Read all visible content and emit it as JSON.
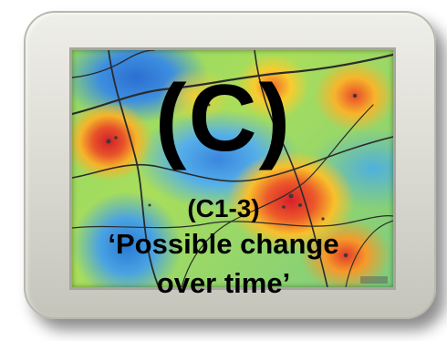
{
  "screen": {
    "letter": "(C)",
    "code": "(C1-3)",
    "caption_line1": "‘Possible change",
    "caption_line2": "over time’"
  },
  "colors": {
    "hot": "#d0202a",
    "warm": "#f5b42a",
    "mid": "#8fd66a",
    "cool": "#2c6fd0",
    "frame": "#d9d8d0",
    "text": "#000000"
  },
  "icons": [
    "heatmap-image",
    "map-roads",
    "device-frame"
  ]
}
